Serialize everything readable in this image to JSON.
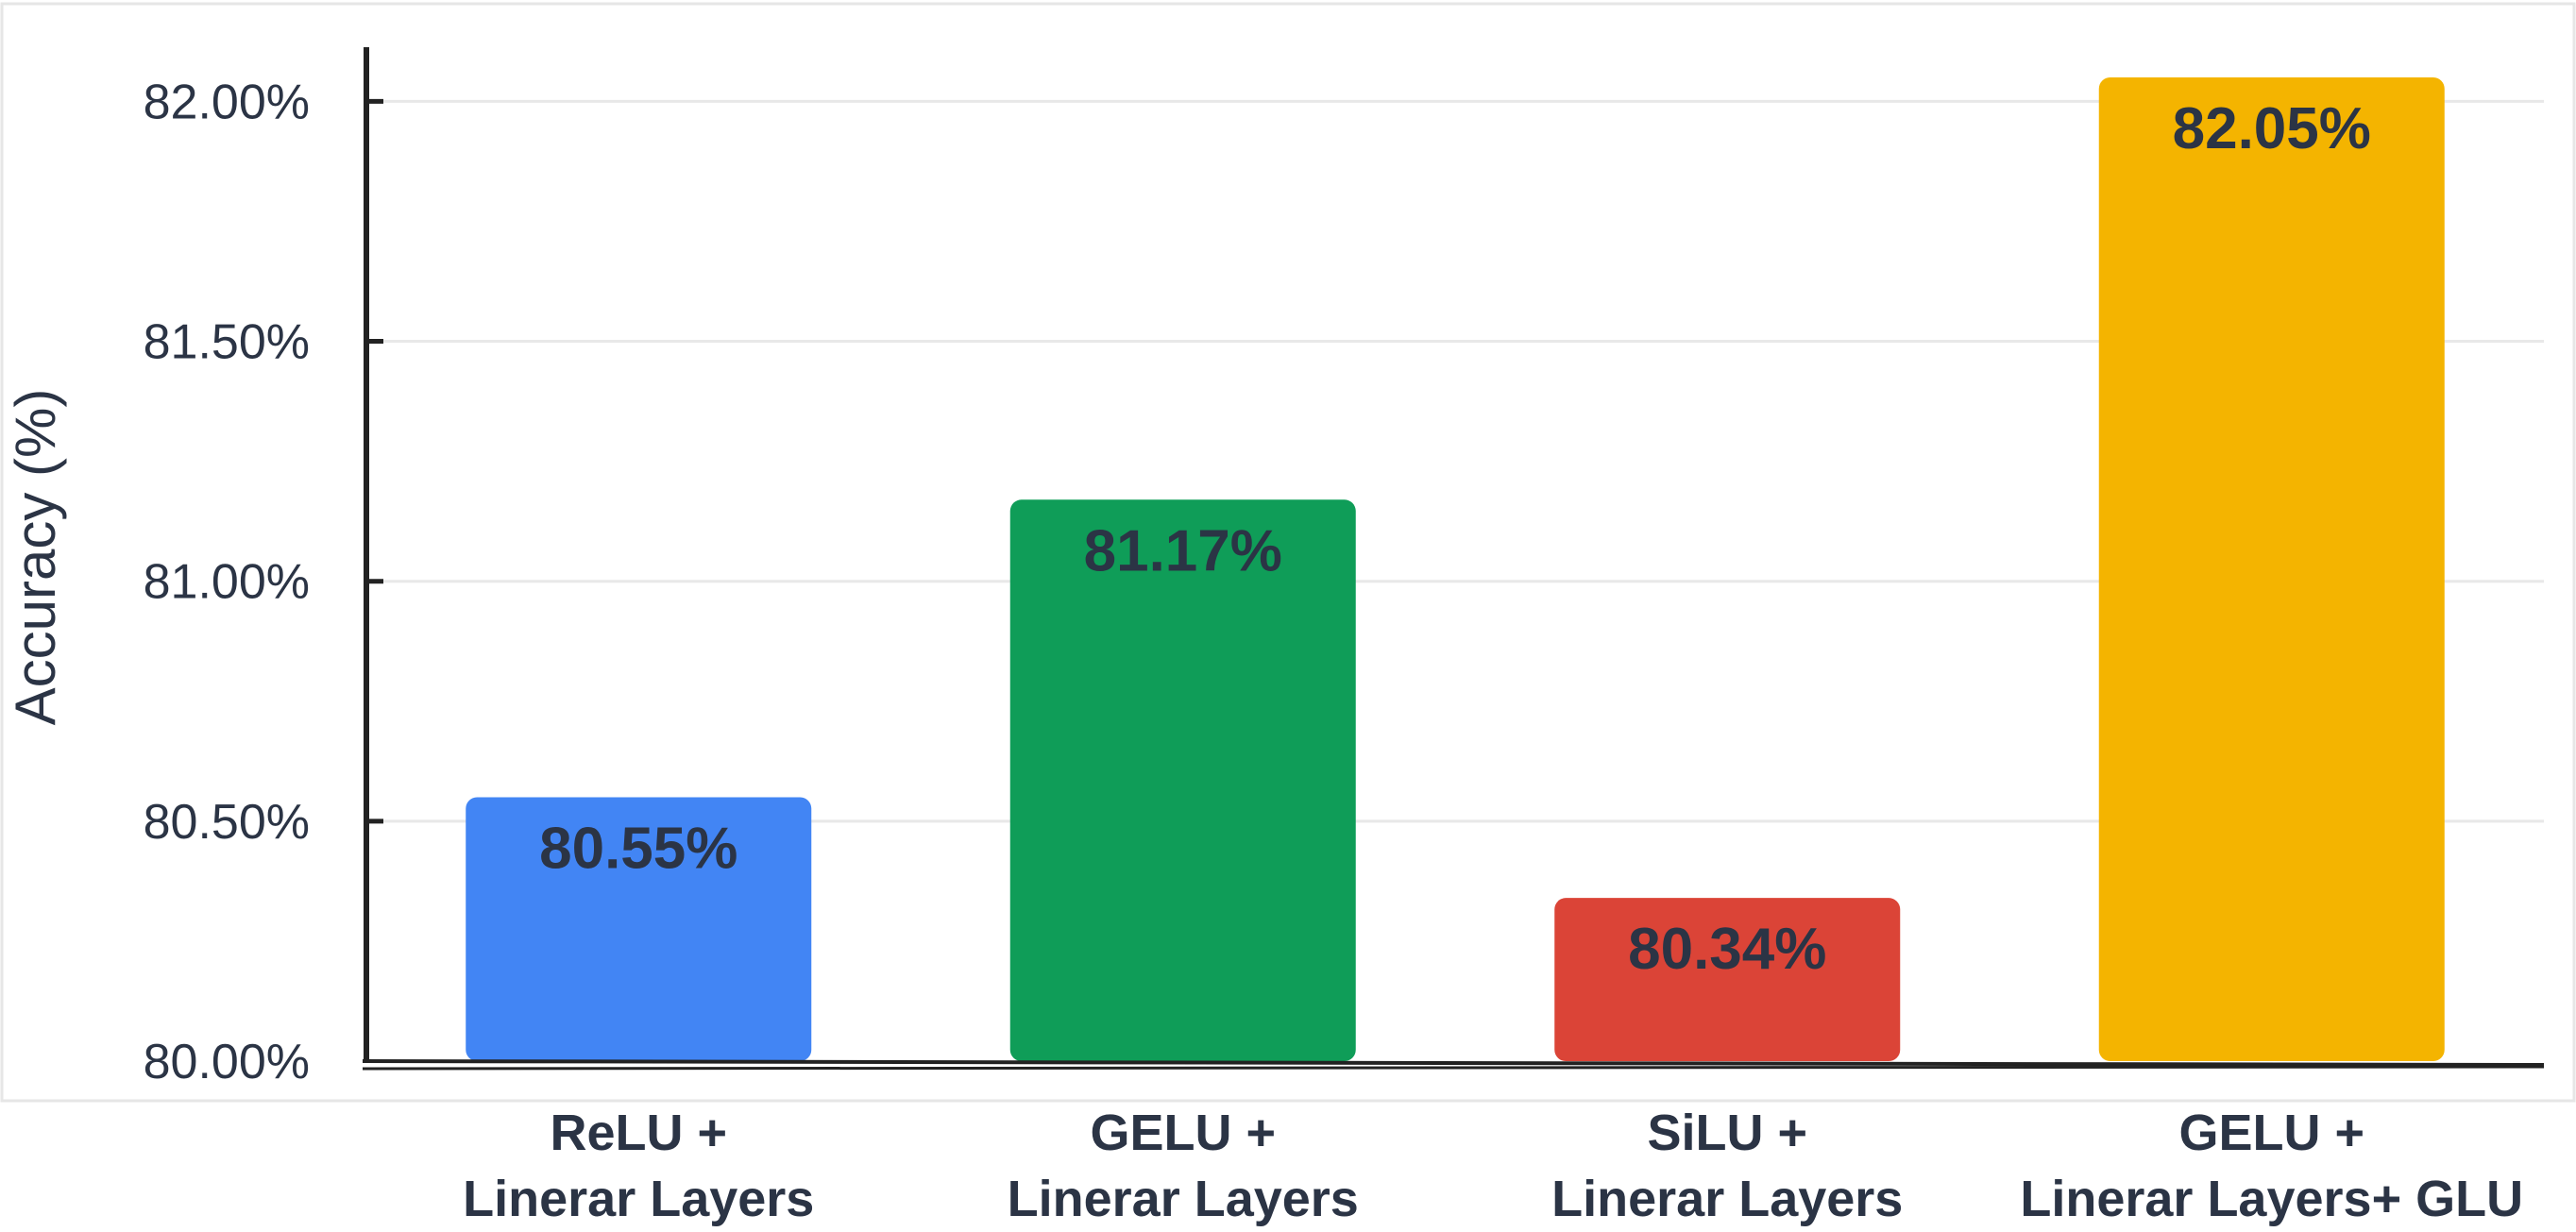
{
  "chart_data": {
    "type": "bar",
    "ylabel": "Accuracy (%)",
    "xlabel": "",
    "ylim": [
      80.0,
      82.05
    ],
    "yticks": [
      "80.00%",
      "80.50%",
      "81.00%",
      "81.50%",
      "82.00%"
    ],
    "ytick_values": [
      80.0,
      80.5,
      81.0,
      81.5,
      82.0
    ],
    "categories": [
      [
        "ReLU +",
        "Linerar Layers"
      ],
      [
        "GELU +",
        "Linerar Layers"
      ],
      [
        "SiLU +",
        "Linerar Layers"
      ],
      [
        "GELU +",
        "Linerar Layers+ GLU"
      ]
    ],
    "values": [
      80.55,
      81.17,
      80.34,
      82.05
    ],
    "data_labels": [
      "80.55%",
      "81.17%",
      "80.34%",
      "82.05%"
    ],
    "colors": [
      "#4285f4",
      "#0f9d58",
      "#db4437",
      "#f4b400"
    ],
    "grid": true,
    "legend": "none"
  }
}
